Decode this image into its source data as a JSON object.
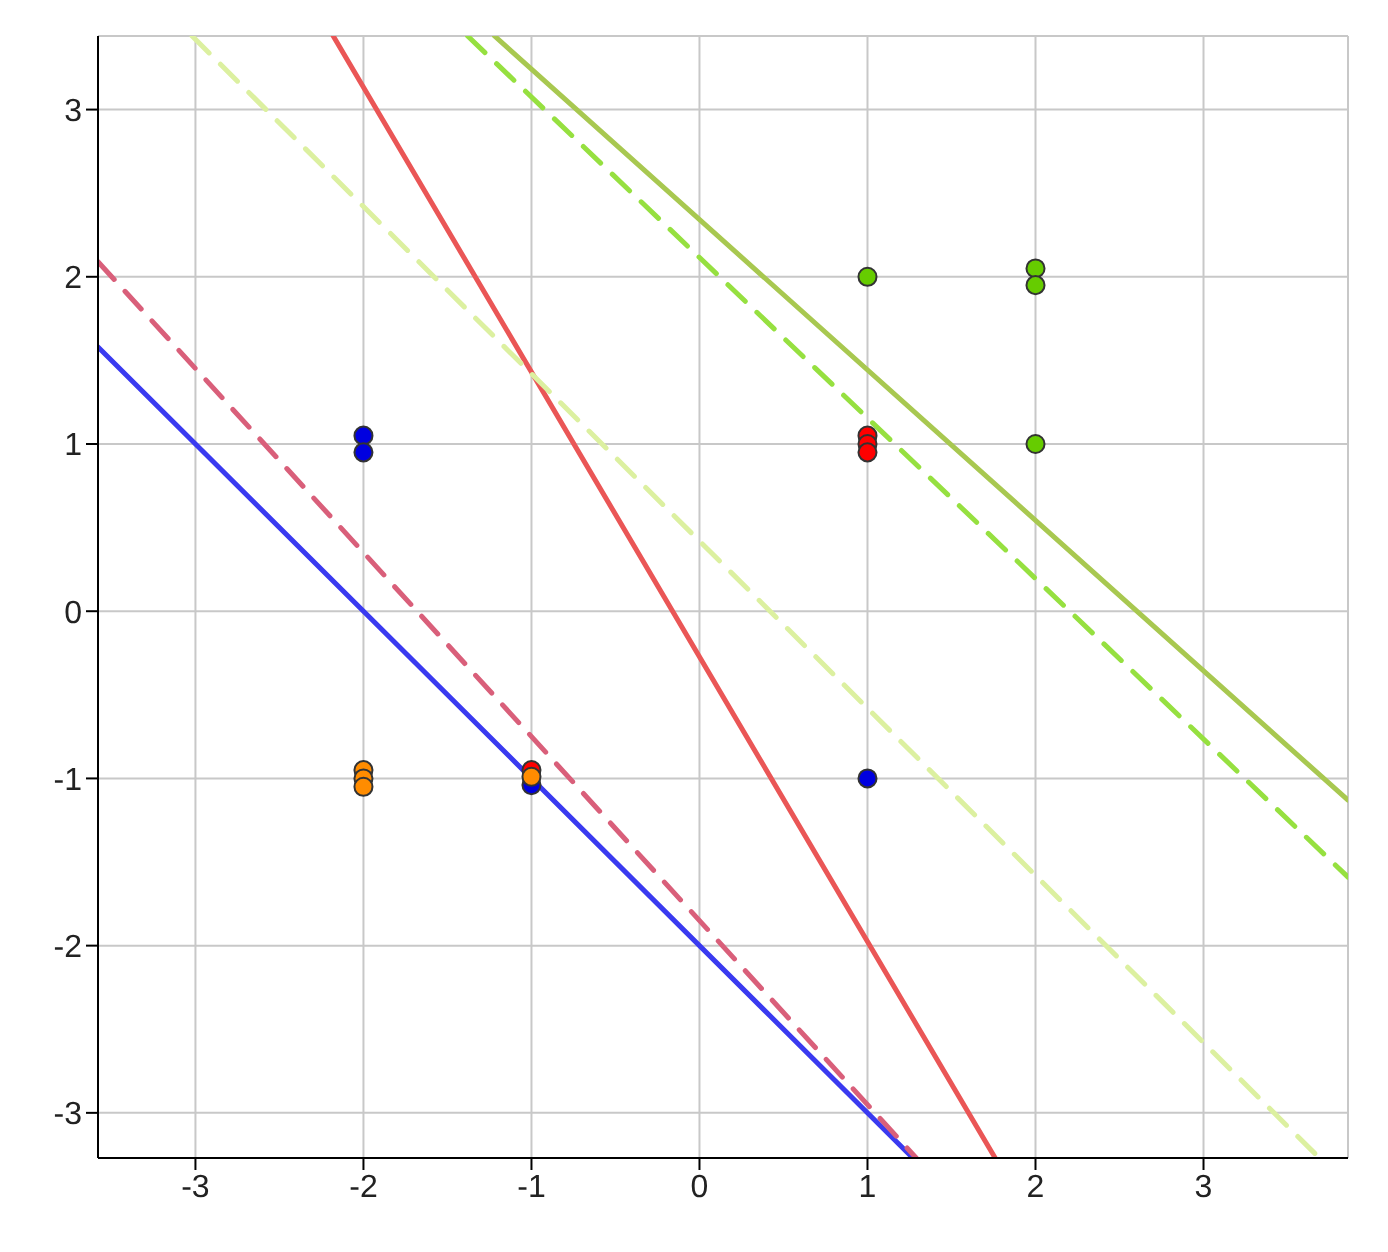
{
  "chart_data": {
    "type": "line",
    "xlim": [
      -3.58,
      3.86
    ],
    "ylim": [
      -3.27,
      3.44
    ],
    "xticks": [
      -3,
      -2,
      -1,
      0,
      1,
      2,
      3
    ],
    "yticks": [
      -3,
      -2,
      -1,
      0,
      1,
      2,
      3
    ],
    "grid": true,
    "marker": "none",
    "series": [
      {
        "color": "#3a3af0",
        "line_style": "solid",
        "x": [
          -3.58,
          1.27
        ],
        "values": [
          1.58,
          -3.27
        ]
      },
      {
        "color": "#d95f7a",
        "line_style": "dashed",
        "x": [
          -3.58,
          1.29
        ],
        "values": [
          2.09,
          -3.27
        ]
      },
      {
        "color": "#ea5656",
        "line_style": "solid",
        "x": [
          -2.18,
          1.76
        ],
        "values": [
          3.44,
          -3.27
        ]
      },
      {
        "color": "#dcf0a0",
        "line_style": "dashed",
        "x": [
          -3.02,
          3.69
        ],
        "values": [
          3.44,
          -3.27
        ]
      },
      {
        "color": "#96e040",
        "line_style": "dashed",
        "x": [
          -1.38,
          3.86
        ],
        "values": [
          3.44,
          -1.59
        ]
      },
      {
        "color": "#a8c850",
        "line_style": "solid",
        "x": [
          -1.22,
          3.86
        ],
        "values": [
          3.44,
          -1.13
        ]
      },
      {
        "type": "scatter",
        "marker": "circle",
        "color": "#0000e0",
        "x": [
          -2,
          -2,
          -1,
          1
        ],
        "values": [
          1.05,
          0.95,
          -1.04,
          -1
        ]
      },
      {
        "type": "scatter",
        "marker": "circle",
        "color": "#ff0000",
        "x": [
          -1,
          1,
          1,
          1
        ],
        "values": [
          -0.95,
          1.05,
          1,
          0.95
        ]
      },
      {
        "type": "scatter",
        "marker": "circle",
        "color": "#66cc00",
        "x": [
          1,
          2,
          2,
          2
        ],
        "values": [
          2,
          2.05,
          1.95,
          1
        ]
      },
      {
        "type": "scatter",
        "marker": "circle",
        "color": "#ff8c00",
        "x": [
          -2,
          -2,
          -2,
          -1
        ],
        "values": [
          -0.95,
          -1,
          -1.05,
          -0.99
        ]
      }
    ]
  }
}
